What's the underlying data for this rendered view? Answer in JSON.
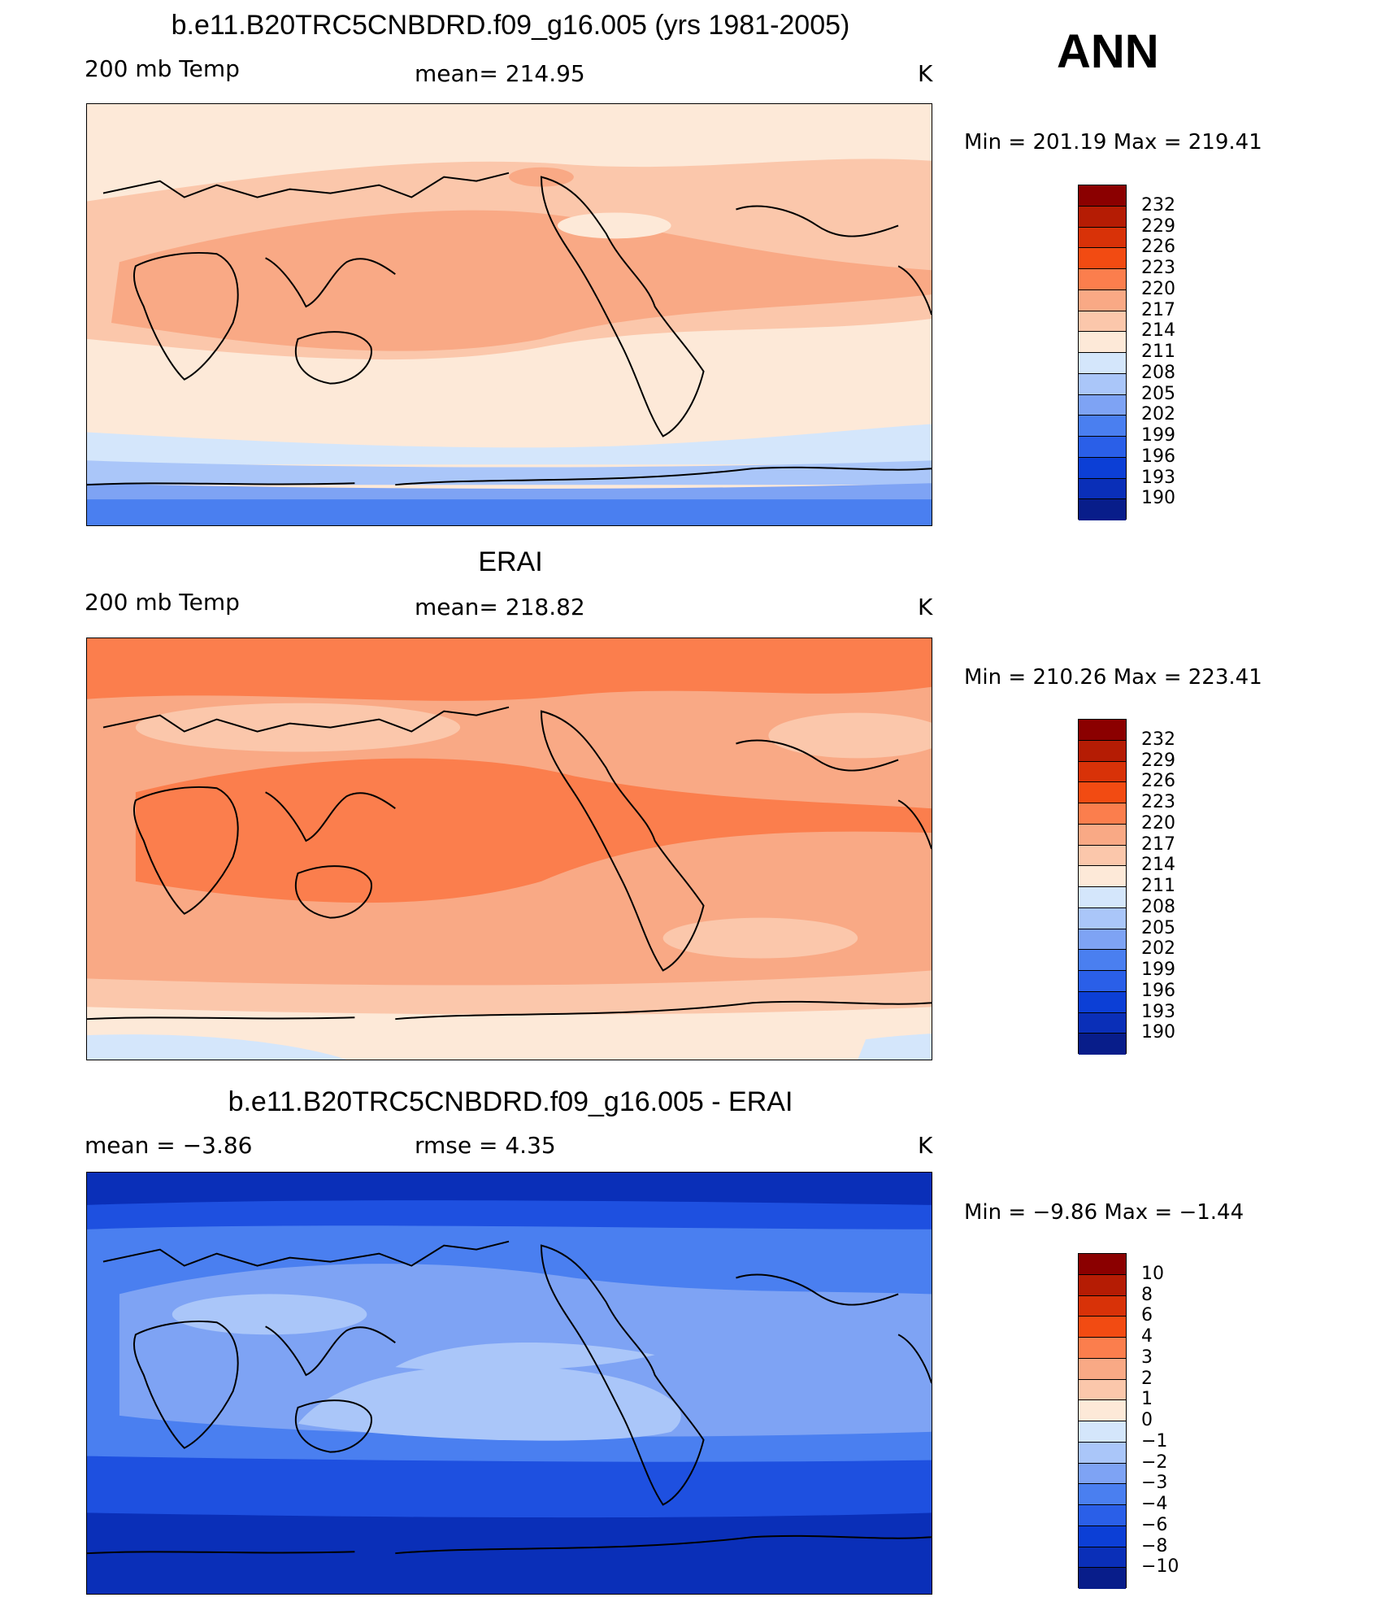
{
  "season": "ANN",
  "panels": [
    {
      "title": "b.e11.B20TRC5CNBDRD.f09_g16.005 (yrs 1981-2005)",
      "left_label": "200 mb Temp",
      "center_label": "mean=  214.95",
      "units": "K",
      "minmax": "Min  =  201.19  Max  =  219.41",
      "colors": [
        "#fde9d8",
        "#fbc7ab",
        "#f9a985",
        "#fbc7ab",
        "#fde9d8",
        "#d4e6fb",
        "#aac6f9",
        "#7ea3f4",
        "#4a7ff0"
      ],
      "colorbar_labels": [
        "232",
        "229",
        "226",
        "223",
        "220",
        "217",
        "214",
        "211",
        "208",
        "205",
        "202",
        "199",
        "196",
        "193",
        "190"
      ]
    },
    {
      "title": "ERAI",
      "left_label": "200 mb Temp",
      "center_label": "mean=  218.82",
      "units": "K",
      "minmax": "Min  =  210.26  Max  =  223.41",
      "colors": [
        "#fb7e4d",
        "#f9a985",
        "#fb7e4d",
        "#f9a985",
        "#fbc7ab",
        "#fde9d8",
        "#d4e6fb"
      ],
      "colorbar_labels": [
        "232",
        "229",
        "226",
        "223",
        "220",
        "217",
        "214",
        "211",
        "208",
        "205",
        "202",
        "199",
        "196",
        "193",
        "190"
      ]
    },
    {
      "title": "b.e11.B20TRC5CNBDRD.f09_g16.005 - ERAI",
      "left_label": "mean =    −3.86",
      "center_label": "rmse =     4.35",
      "units": "K",
      "minmax": "Min  =    −9.86  Max  =    −1.44",
      "colors": [
        "#0a2fb8",
        "#1e50e0",
        "#4a7ff0",
        "#7ea3f4",
        "#aac6f9",
        "#7ea3f4",
        "#4a7ff0",
        "#1e50e0",
        "#0a2fb8"
      ],
      "colorbar_labels": [
        "10",
        "8",
        "6",
        "4",
        "3",
        "2",
        "1",
        "0",
        "−1",
        "−2",
        "−3",
        "−4",
        "−6",
        "−8",
        "−10"
      ]
    }
  ],
  "colorbar_colors": [
    "#8b0000",
    "#b51c04",
    "#d83208",
    "#f24b12",
    "#fb7e4d",
    "#f9a985",
    "#fbc7ab",
    "#fde9d8",
    "#d4e6fb",
    "#aac6f9",
    "#7ea3f4",
    "#4a7ff0",
    "#2a5fe8",
    "#0c3fd6",
    "#0a2fb8",
    "#081d8a"
  ]
}
